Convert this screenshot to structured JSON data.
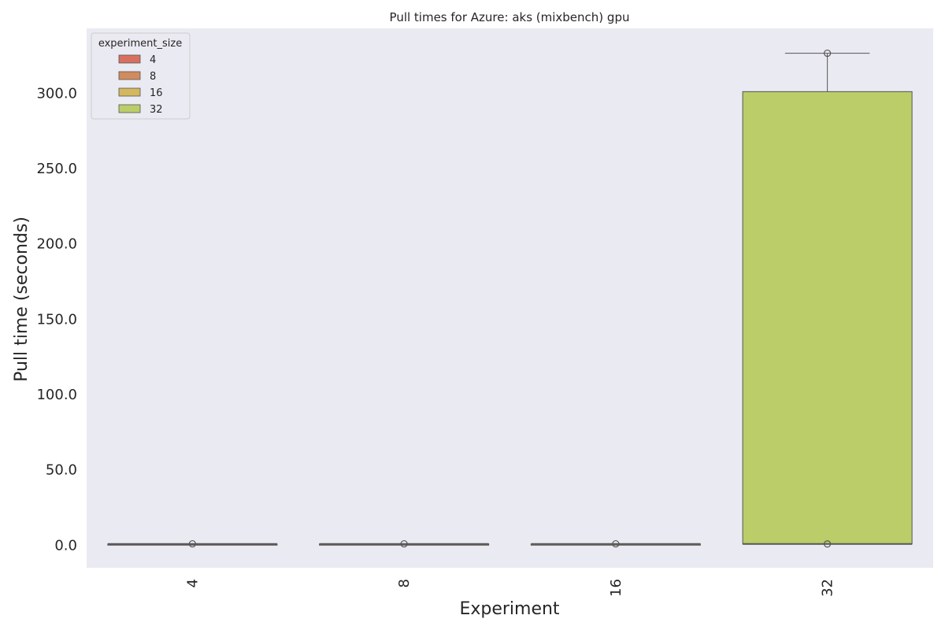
{
  "chart_data": {
    "type": "box",
    "title": "Pull times for Azure: aks (mixbench) gpu",
    "xlabel": "Experiment",
    "ylabel": "Pull time (seconds)",
    "categories": [
      "4",
      "8",
      "16",
      "32"
    ],
    "y_ticks": [
      0,
      50,
      100,
      150,
      200,
      250,
      300
    ],
    "y_tick_labels": [
      "0.0",
      "50.0",
      "100.0",
      "150.0",
      "200.0",
      "250.0",
      "300.0"
    ],
    "ylim": [
      -15,
      343
    ],
    "grid": false,
    "legend": {
      "title": "experiment_size",
      "placement": "top-left",
      "entries": [
        "4",
        "8",
        "16",
        "32"
      ]
    },
    "series": [
      {
        "name": "4",
        "color": "#d9705f",
        "box": {
          "min": 0.8,
          "q1": 0.8,
          "median": 0.8,
          "q3": 0.8,
          "max": 0.8
        },
        "outliers": [
          0.9
        ]
      },
      {
        "name": "8",
        "color": "#d18b5e",
        "box": {
          "min": 0.8,
          "q1": 0.8,
          "median": 0.8,
          "q3": 0.8,
          "max": 0.8
        },
        "outliers": [
          0.9
        ]
      },
      {
        "name": "16",
        "color": "#d3b85f",
        "box": {
          "min": 0.8,
          "q1": 0.8,
          "median": 0.8,
          "q3": 0.8,
          "max": 0.8
        },
        "outliers": [
          0.9
        ]
      },
      {
        "name": "32",
        "color": "#bacd69",
        "box": {
          "min": 0.8,
          "q1": 0.8,
          "median": 0.8,
          "q3": 301,
          "max": 326.5
        },
        "outliers": [
          326.5,
          0.8
        ]
      }
    ],
    "colors": {
      "plot_background": "#eaeaf2",
      "outline": "#555555"
    }
  }
}
